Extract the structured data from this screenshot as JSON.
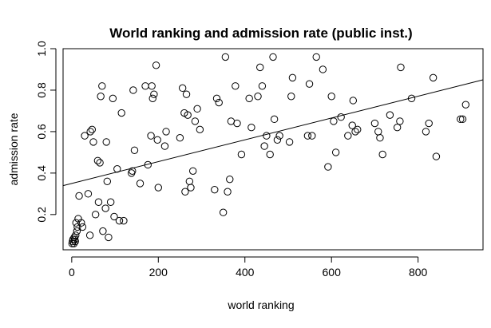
{
  "chart_data": {
    "type": "scatter",
    "title": "World ranking and admission rate (public inst.)",
    "xlabel": "world ranking",
    "ylabel": "admission rate",
    "xlim": [
      -20,
      950
    ],
    "ylim": [
      0.03,
      1.0
    ],
    "xticks": [
      0,
      200,
      400,
      600,
      800
    ],
    "yticks": [
      0.2,
      0.4,
      0.6,
      0.8,
      1.0
    ],
    "xtick_labels": [
      "0",
      "200",
      "400",
      "600",
      "800"
    ],
    "ytick_labels": [
      "0.2",
      "0.4",
      "0.6",
      "0.8",
      "1.0"
    ],
    "grid": false,
    "marker": "open-circle",
    "color": "#000000",
    "regression_line": {
      "intercept": 0.35,
      "slope": 0.000526
    },
    "points": [
      [
        1,
        0.06
      ],
      [
        2,
        0.07
      ],
      [
        3,
        0.08
      ],
      [
        5,
        0.06
      ],
      [
        6,
        0.09
      ],
      [
        7,
        0.08
      ],
      [
        8,
        0.07
      ],
      [
        9,
        0.1
      ],
      [
        10,
        0.16
      ],
      [
        12,
        0.12
      ],
      [
        13,
        0.14
      ],
      [
        15,
        0.18
      ],
      [
        17,
        0.29
      ],
      [
        22,
        0.16
      ],
      [
        25,
        0.14
      ],
      [
        30,
        0.58
      ],
      [
        38,
        0.3
      ],
      [
        42,
        0.1
      ],
      [
        43,
        0.6
      ],
      [
        47,
        0.61
      ],
      [
        50,
        0.55
      ],
      [
        55,
        0.2
      ],
      [
        60,
        0.46
      ],
      [
        62,
        0.26
      ],
      [
        65,
        0.45
      ],
      [
        67,
        0.77
      ],
      [
        70,
        0.82
      ],
      [
        72,
        0.12
      ],
      [
        78,
        0.23
      ],
      [
        80,
        0.55
      ],
      [
        82,
        0.36
      ],
      [
        85,
        0.09
      ],
      [
        90,
        0.26
      ],
      [
        95,
        0.76
      ],
      [
        98,
        0.19
      ],
      [
        105,
        0.42
      ],
      [
        110,
        0.17
      ],
      [
        115,
        0.69
      ],
      [
        120,
        0.17
      ],
      [
        138,
        0.4
      ],
      [
        140,
        0.41
      ],
      [
        142,
        0.8
      ],
      [
        145,
        0.51
      ],
      [
        158,
        0.35
      ],
      [
        170,
        0.82
      ],
      [
        176,
        0.44
      ],
      [
        183,
        0.58
      ],
      [
        185,
        0.82
      ],
      [
        187,
        0.76
      ],
      [
        190,
        0.78
      ],
      [
        195,
        0.92
      ],
      [
        198,
        0.56
      ],
      [
        200,
        0.33
      ],
      [
        215,
        0.53
      ],
      [
        218,
        0.6
      ],
      [
        250,
        0.57
      ],
      [
        256,
        0.81
      ],
      [
        260,
        0.69
      ],
      [
        262,
        0.31
      ],
      [
        265,
        0.78
      ],
      [
        268,
        0.68
      ],
      [
        272,
        0.36
      ],
      [
        275,
        0.33
      ],
      [
        280,
        0.41
      ],
      [
        285,
        0.65
      ],
      [
        290,
        0.71
      ],
      [
        296,
        0.61
      ],
      [
        330,
        0.32
      ],
      [
        335,
        0.76
      ],
      [
        340,
        0.74
      ],
      [
        350,
        0.21
      ],
      [
        355,
        0.96
      ],
      [
        360,
        0.31
      ],
      [
        365,
        0.37
      ],
      [
        368,
        0.65
      ],
      [
        378,
        0.82
      ],
      [
        382,
        0.64
      ],
      [
        392,
        0.49
      ],
      [
        410,
        0.76
      ],
      [
        415,
        0.62
      ],
      [
        430,
        0.77
      ],
      [
        435,
        0.91
      ],
      [
        440,
        0.82
      ],
      [
        445,
        0.53
      ],
      [
        450,
        0.58
      ],
      [
        458,
        0.49
      ],
      [
        465,
        0.96
      ],
      [
        468,
        0.66
      ],
      [
        475,
        0.56
      ],
      [
        480,
        0.58
      ],
      [
        503,
        0.55
      ],
      [
        507,
        0.77
      ],
      [
        510,
        0.86
      ],
      [
        545,
        0.58
      ],
      [
        549,
        0.83
      ],
      [
        555,
        0.58
      ],
      [
        565,
        0.96
      ],
      [
        580,
        0.9
      ],
      [
        592,
        0.43
      ],
      [
        600,
        0.77
      ],
      [
        605,
        0.65
      ],
      [
        610,
        0.5
      ],
      [
        622,
        0.67
      ],
      [
        638,
        0.58
      ],
      [
        648,
        0.63
      ],
      [
        650,
        0.75
      ],
      [
        655,
        0.6
      ],
      [
        660,
        0.61
      ],
      [
        700,
        0.64
      ],
      [
        708,
        0.6
      ],
      [
        712,
        0.57
      ],
      [
        718,
        0.49
      ],
      [
        735,
        0.68
      ],
      [
        752,
        0.62
      ],
      [
        758,
        0.65
      ],
      [
        760,
        0.91
      ],
      [
        785,
        0.76
      ],
      [
        818,
        0.6
      ],
      [
        825,
        0.64
      ],
      [
        835,
        0.86
      ],
      [
        842,
        0.48
      ],
      [
        898,
        0.66
      ],
      [
        903,
        0.66
      ],
      [
        910,
        0.73
      ]
    ]
  }
}
